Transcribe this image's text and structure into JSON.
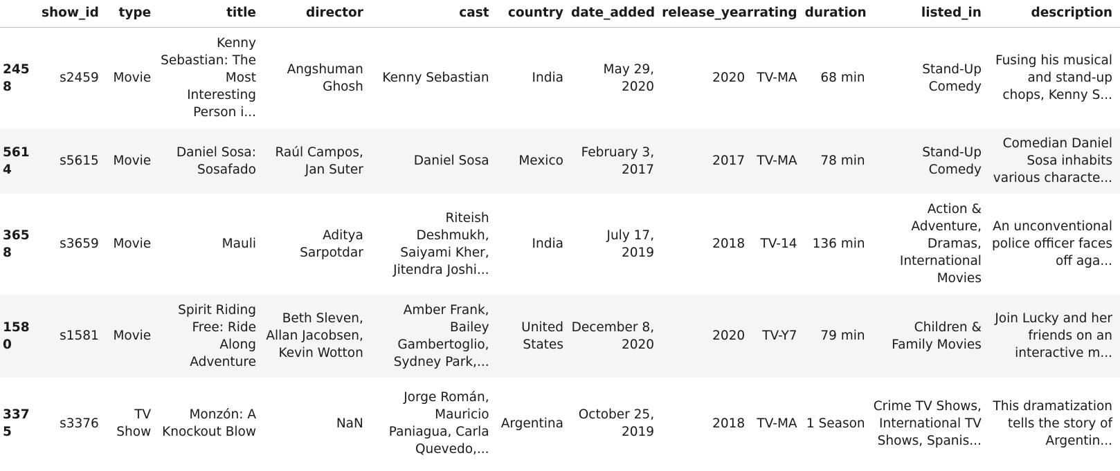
{
  "table": {
    "index_header": "",
    "columns": [
      "show_id",
      "type",
      "title",
      "director",
      "cast",
      "country",
      "date_added",
      "release_year",
      "rating",
      "duration",
      "listed_in",
      "description"
    ],
    "rows": [
      {
        "index": "2458",
        "cells": [
          "s2459",
          "Movie",
          "Kenny Sebastian: The Most Interesting Person i...",
          "Angshuman Ghosh",
          "Kenny Sebastian",
          "India",
          "May 29, 2020",
          "2020",
          "TV-MA",
          "68 min",
          "Stand-Up Comedy",
          "Fusing his musical and stand-up chops, Kenny S..."
        ]
      },
      {
        "index": "5614",
        "cells": [
          "s5615",
          "Movie",
          "Daniel Sosa: Sosafado",
          "Raúl Campos, Jan Suter",
          "Daniel Sosa",
          "Mexico",
          "February 3, 2017",
          "2017",
          "TV-MA",
          "78 min",
          "Stand-Up Comedy",
          "Comedian Daniel Sosa inhabits various characte..."
        ]
      },
      {
        "index": "3658",
        "cells": [
          "s3659",
          "Movie",
          "Mauli",
          "Aditya Sarpotdar",
          "Riteish Deshmukh, Saiyami Kher, Jitendra Joshi...",
          "India",
          "July 17, 2019",
          "2018",
          "TV-14",
          "136 min",
          "Action & Adventure, Dramas, International Movies",
          "An unconventional police officer faces off aga..."
        ]
      },
      {
        "index": "1580",
        "cells": [
          "s1581",
          "Movie",
          "Spirit Riding Free: Ride Along Adventure",
          "Beth Sleven, Allan Jacobsen, Kevin Wotton",
          "Amber Frank, Bailey Gambertoglio, Sydney Park,...",
          "United States",
          "December 8, 2020",
          "2020",
          "TV-Y7",
          "79 min",
          "Children & Family Movies",
          "Join Lucky and her friends on an interactive m..."
        ]
      },
      {
        "index": "3375",
        "cells": [
          "s3376",
          "TV Show",
          "Monzón: A Knockout Blow",
          "NaN",
          "Jorge Román, Mauricio Paniagua, Carla Quevedo,...",
          "Argentina",
          "October 25, 2019",
          "2018",
          "TV-MA",
          "1 Season",
          "Crime TV Shows, International TV Shows, Spanis...",
          "This dramatization tells the story of Argentin..."
        ]
      }
    ]
  }
}
